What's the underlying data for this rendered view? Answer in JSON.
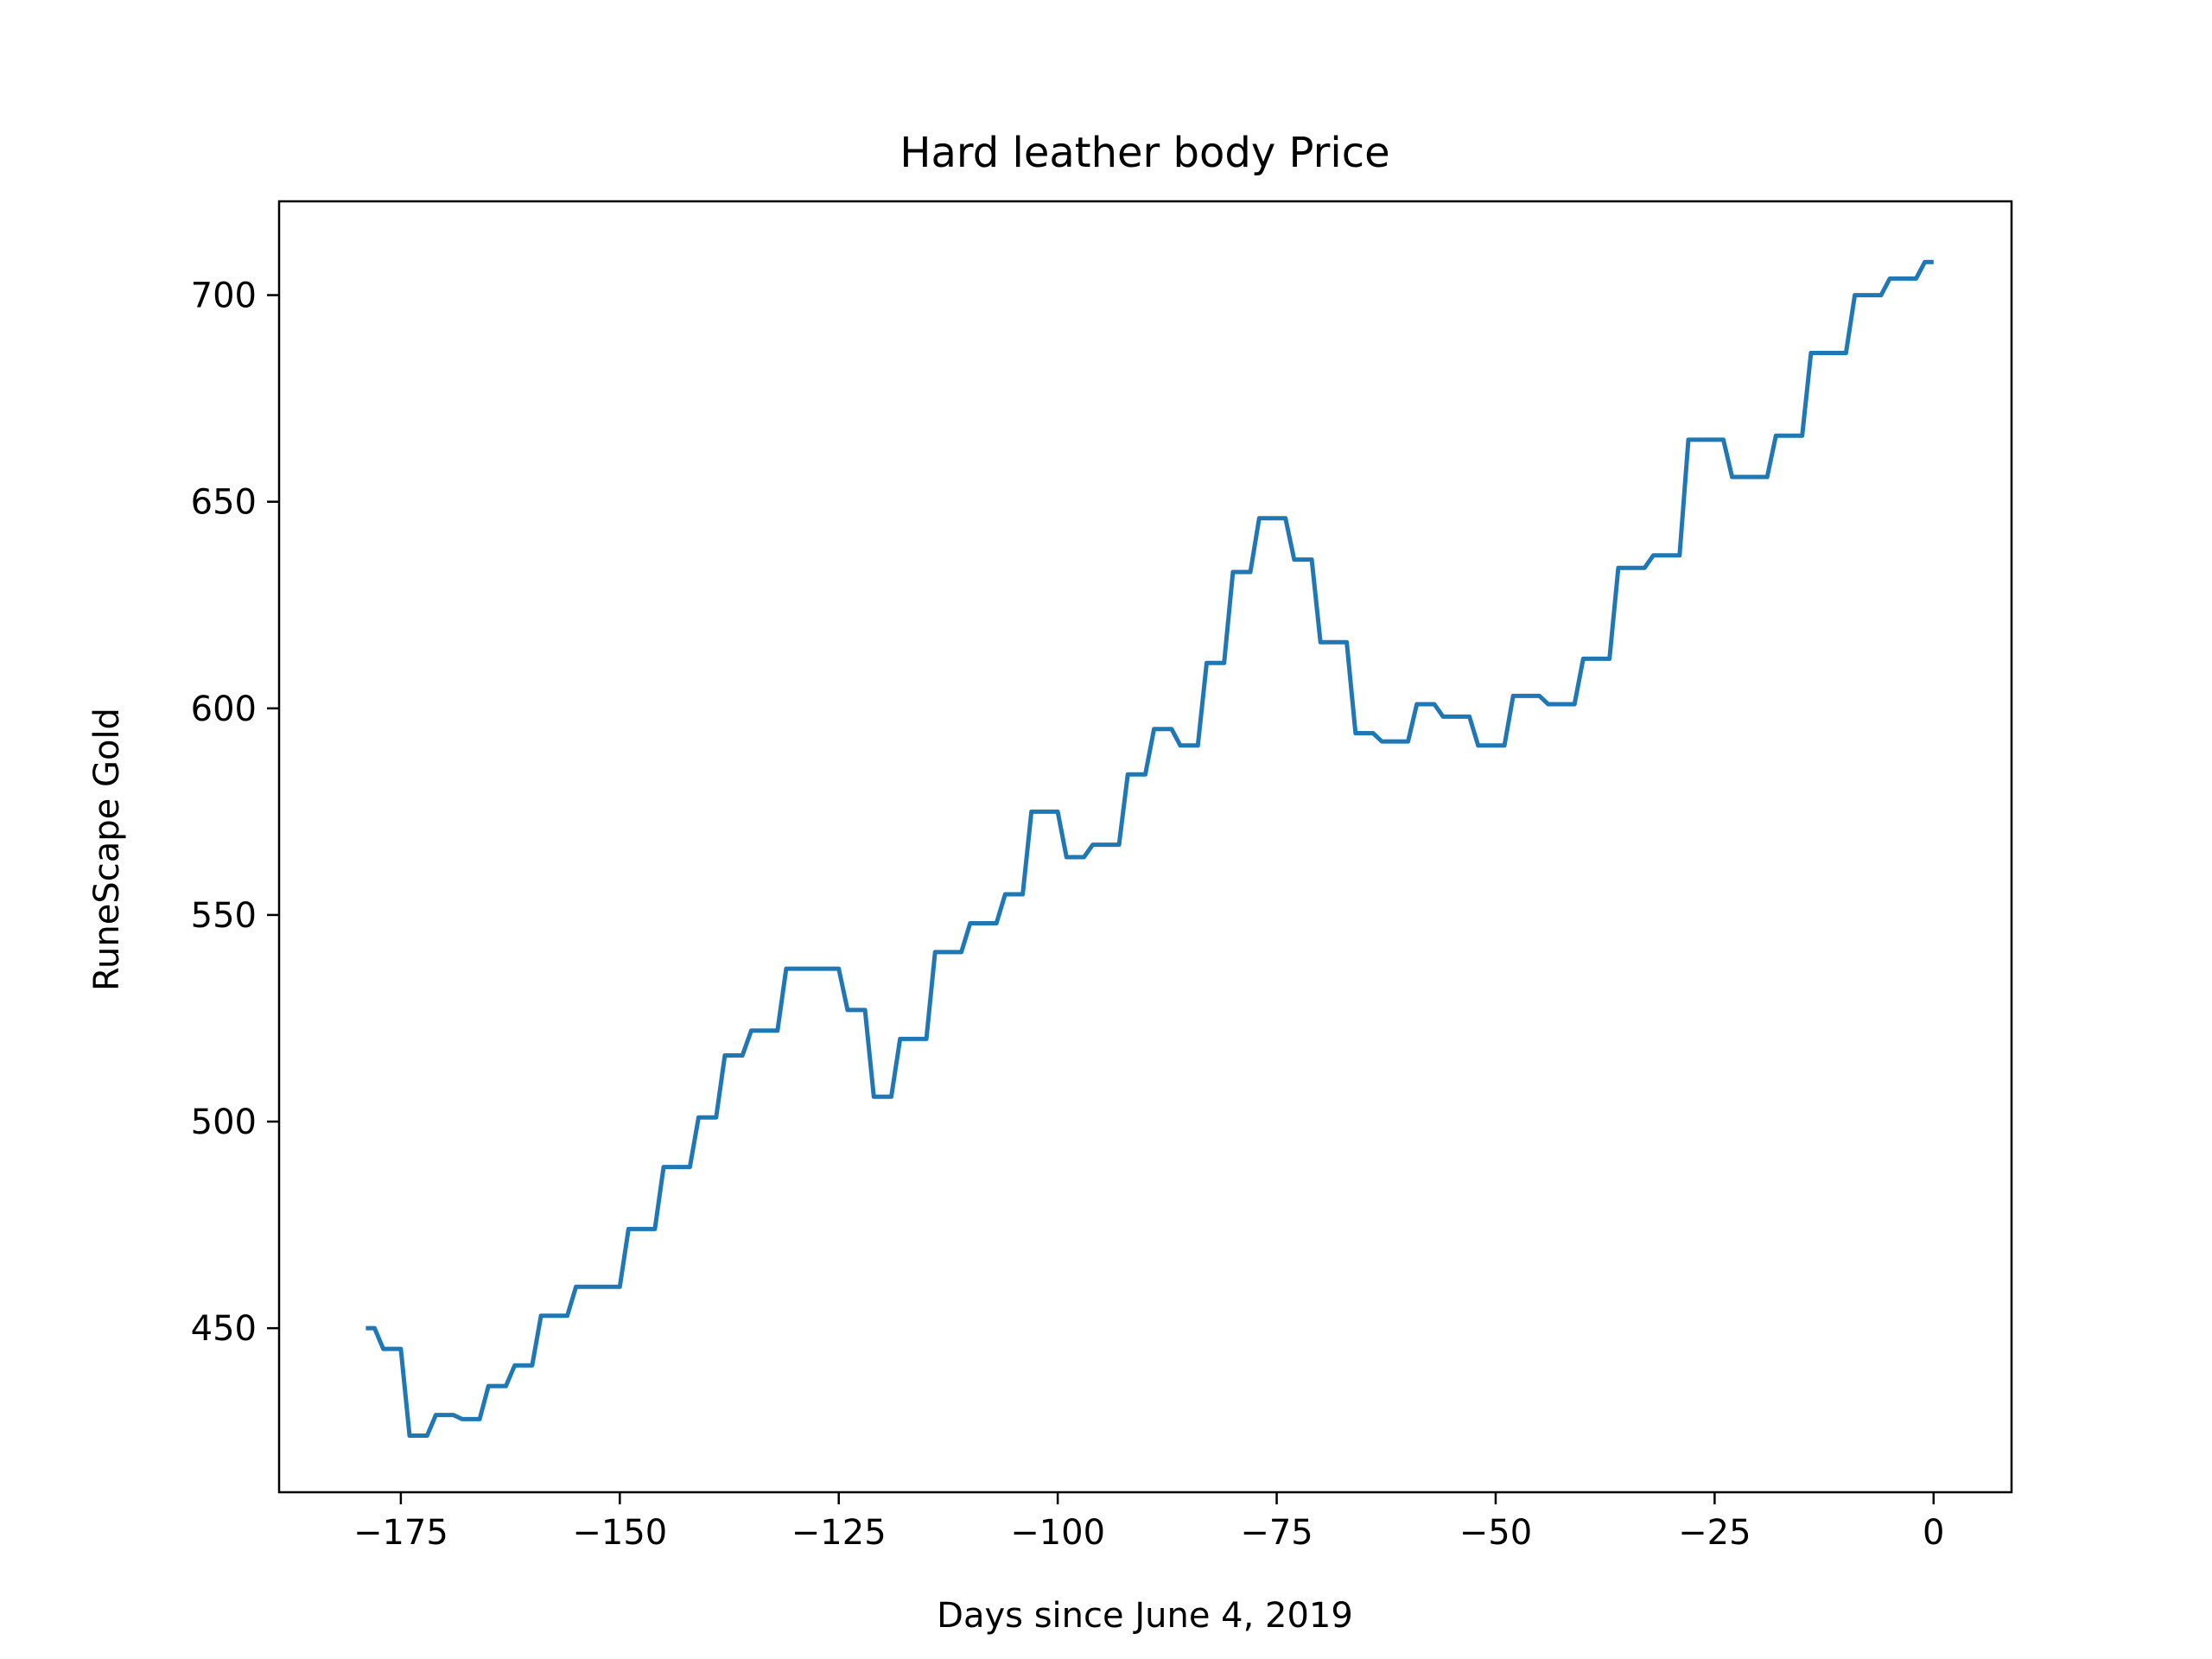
{
  "chart_data": {
    "type": "line",
    "title": "Hard leather body Price",
    "xlabel": "Days since June 4, 2019",
    "ylabel": "RuneScape Gold",
    "xlim": [
      -188.9,
      8.9
    ],
    "ylim": [
      410.3,
      722.7
    ],
    "xticks": [
      -175,
      -150,
      -125,
      -100,
      -75,
      -50,
      -25,
      0
    ],
    "xtick_labels": [
      "−175",
      "−150",
      "−125",
      "−100",
      "−75",
      "−50",
      "−25",
      "0"
    ],
    "yticks": [
      450,
      500,
      550,
      600,
      650,
      700
    ],
    "ytick_labels": [
      "450",
      "500",
      "550",
      "600",
      "650",
      "700"
    ],
    "grid": false,
    "legend": false,
    "series": [
      {
        "color": "#1f77b4",
        "points": [
          [
            -179,
            450
          ],
          [
            -178,
            450
          ],
          [
            -177,
            445
          ],
          [
            -176,
            445
          ],
          [
            -175,
            445
          ],
          [
            -174,
            424
          ],
          [
            -173,
            424
          ],
          [
            -172,
            424
          ],
          [
            -171,
            429
          ],
          [
            -170,
            429
          ],
          [
            -169,
            429
          ],
          [
            -168,
            428
          ],
          [
            -167,
            428
          ],
          [
            -166,
            428
          ],
          [
            -165,
            436
          ],
          [
            -164,
            436
          ],
          [
            -163,
            436
          ],
          [
            -162,
            441
          ],
          [
            -161,
            441
          ],
          [
            -160,
            441
          ],
          [
            -159,
            453
          ],
          [
            -158,
            453
          ],
          [
            -157,
            453
          ],
          [
            -156,
            453
          ],
          [
            -155,
            460
          ],
          [
            -154,
            460
          ],
          [
            -153,
            460
          ],
          [
            -152,
            460
          ],
          [
            -151,
            460
          ],
          [
            -150,
            460
          ],
          [
            -149,
            474
          ],
          [
            -148,
            474
          ],
          [
            -147,
            474
          ],
          [
            -146,
            474
          ],
          [
            -145,
            489
          ],
          [
            -144,
            489
          ],
          [
            -143,
            489
          ],
          [
            -142,
            489
          ],
          [
            -141,
            501
          ],
          [
            -140,
            501
          ],
          [
            -139,
            501
          ],
          [
            -138,
            516
          ],
          [
            -137,
            516
          ],
          [
            -136,
            516
          ],
          [
            -135,
            522
          ],
          [
            -134,
            522
          ],
          [
            -133,
            522
          ],
          [
            -132,
            522
          ],
          [
            -131,
            537
          ],
          [
            -130,
            537
          ],
          [
            -129,
            537
          ],
          [
            -128,
            537
          ],
          [
            -127,
            537
          ],
          [
            -126,
            537
          ],
          [
            -125,
            537
          ],
          [
            -124,
            527
          ],
          [
            -123,
            527
          ],
          [
            -122,
            527
          ],
          [
            -121,
            506
          ],
          [
            -120,
            506
          ],
          [
            -119,
            506
          ],
          [
            -118,
            520
          ],
          [
            -117,
            520
          ],
          [
            -116,
            520
          ],
          [
            -115,
            520
          ],
          [
            -114,
            541
          ],
          [
            -113,
            541
          ],
          [
            -112,
            541
          ],
          [
            -111,
            541
          ],
          [
            -110,
            548
          ],
          [
            -109,
            548
          ],
          [
            -108,
            548
          ],
          [
            -107,
            548
          ],
          [
            -106,
            555
          ],
          [
            -105,
            555
          ],
          [
            -104,
            555
          ],
          [
            -103,
            575
          ],
          [
            -102,
            575
          ],
          [
            -101,
            575
          ],
          [
            -100,
            575
          ],
          [
            -99,
            564
          ],
          [
            -98,
            564
          ],
          [
            -97,
            564
          ],
          [
            -96,
            567
          ],
          [
            -95,
            567
          ],
          [
            -94,
            567
          ],
          [
            -93,
            567
          ],
          [
            -92,
            584
          ],
          [
            -91,
            584
          ],
          [
            -90,
            584
          ],
          [
            -89,
            595
          ],
          [
            -88,
            595
          ],
          [
            -87,
            595
          ],
          [
            -86,
            591
          ],
          [
            -85,
            591
          ],
          [
            -84,
            591
          ],
          [
            -83,
            611
          ],
          [
            -82,
            611
          ],
          [
            -81,
            611
          ],
          [
            -80,
            633
          ],
          [
            -79,
            633
          ],
          [
            -78,
            633
          ],
          [
            -77,
            646
          ],
          [
            -76,
            646
          ],
          [
            -75,
            646
          ],
          [
            -74,
            646
          ],
          [
            -73,
            636
          ],
          [
            -72,
            636
          ],
          [
            -71,
            636
          ],
          [
            -70,
            616
          ],
          [
            -69,
            616
          ],
          [
            -68,
            616
          ],
          [
            -67,
            616
          ],
          [
            -66,
            594
          ],
          [
            -65,
            594
          ],
          [
            -64,
            594
          ],
          [
            -63,
            592
          ],
          [
            -62,
            592
          ],
          [
            -61,
            592
          ],
          [
            -60,
            592
          ],
          [
            -59,
            601
          ],
          [
            -58,
            601
          ],
          [
            -57,
            601
          ],
          [
            -56,
            598
          ],
          [
            -55,
            598
          ],
          [
            -54,
            598
          ],
          [
            -53,
            598
          ],
          [
            -52,
            591
          ],
          [
            -51,
            591
          ],
          [
            -50,
            591
          ],
          [
            -49,
            591
          ],
          [
            -48,
            603
          ],
          [
            -47,
            603
          ],
          [
            -46,
            603
          ],
          [
            -45,
            603
          ],
          [
            -44,
            601
          ],
          [
            -43,
            601
          ],
          [
            -42,
            601
          ],
          [
            -41,
            601
          ],
          [
            -40,
            612
          ],
          [
            -39,
            612
          ],
          [
            -38,
            612
          ],
          [
            -37,
            612
          ],
          [
            -36,
            634
          ],
          [
            -35,
            634
          ],
          [
            -34,
            634
          ],
          [
            -33,
            634
          ],
          [
            -32,
            637
          ],
          [
            -31,
            637
          ],
          [
            -30,
            637
          ],
          [
            -29,
            637
          ],
          [
            -28,
            665
          ],
          [
            -27,
            665
          ],
          [
            -26,
            665
          ],
          [
            -25,
            665
          ],
          [
            -24,
            665
          ],
          [
            -23,
            656
          ],
          [
            -22,
            656
          ],
          [
            -21,
            656
          ],
          [
            -20,
            656
          ],
          [
            -19,
            656
          ],
          [
            -18,
            666
          ],
          [
            -17,
            666
          ],
          [
            -16,
            666
          ],
          [
            -15,
            666
          ],
          [
            -14,
            686
          ],
          [
            -13,
            686
          ],
          [
            -12,
            686
          ],
          [
            -11,
            686
          ],
          [
            -10,
            686
          ],
          [
            -9,
            700
          ],
          [
            -8,
            700
          ],
          [
            -7,
            700
          ],
          [
            -6,
            700
          ],
          [
            -5,
            704
          ],
          [
            -4,
            704
          ],
          [
            -3,
            704
          ],
          [
            -2,
            704
          ],
          [
            -1,
            708
          ],
          [
            0,
            708
          ]
        ]
      }
    ]
  }
}
